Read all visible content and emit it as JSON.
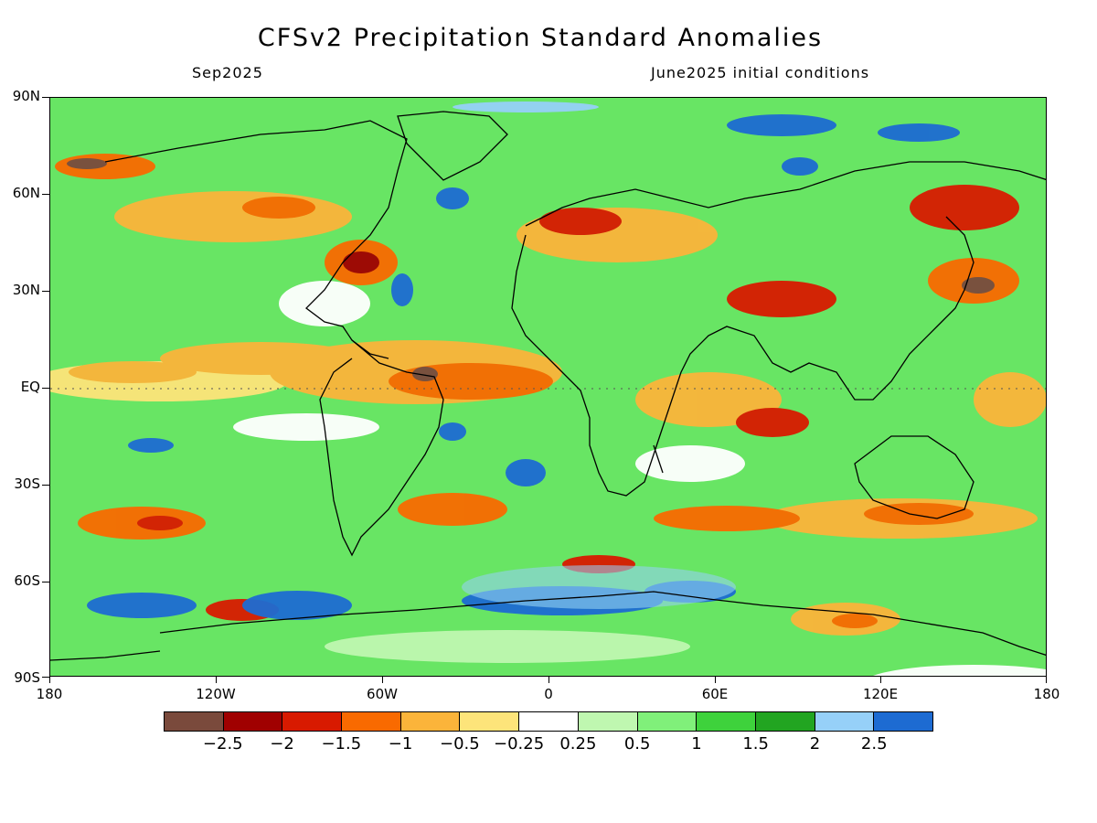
{
  "header": {
    "title": "CFSv2 Precipitation Standard Anomalies",
    "valid_month": "Sep2025",
    "init": "June2025 initial conditions"
  },
  "axes": {
    "lat_labels": [
      "90N",
      "60N",
      "30N",
      "EQ",
      "30S",
      "60S",
      "90S"
    ],
    "lat_values": [
      90,
      60,
      30,
      0,
      -30,
      -60,
      -90
    ],
    "lon_labels": [
      "180",
      "120W",
      "60W",
      "0",
      "60E",
      "120E",
      "180"
    ],
    "lon_values": [
      -180,
      -120,
      -60,
      0,
      60,
      120,
      180
    ]
  },
  "legend": {
    "colors": [
      "#7a4a3c",
      "#a00000",
      "#d81a00",
      "#f96a00",
      "#fbb43a",
      "#fde47a",
      "#ffffff",
      "#bff7b0",
      "#80f07a",
      "#3ed23c",
      "#22a521",
      "#96d0f8",
      "#1d6bd2"
    ],
    "labels": [
      "−2.5",
      "−2",
      "−1.5",
      "−1",
      "−0.5",
      "−0.25",
      "0.25",
      "0.5",
      "1",
      "1.5",
      "2",
      "2.5"
    ]
  }
}
